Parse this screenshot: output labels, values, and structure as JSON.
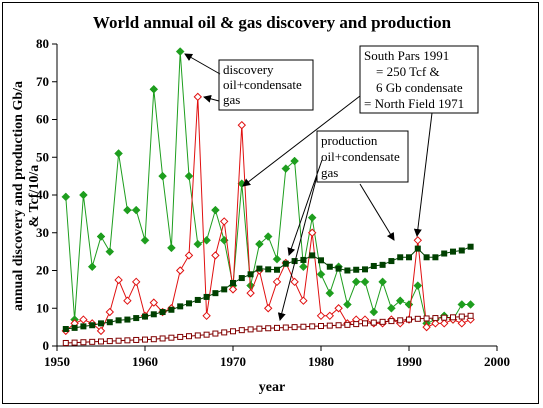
{
  "chart_data": {
    "type": "line",
    "title": "World annual oil & gas discovery and production",
    "xlabel": "year",
    "ylabel_line1": "annual discovery and production Gb/a",
    "ylabel_line2": "& Tcf/10/a",
    "xlim": [
      1950,
      2000
    ],
    "ylim": [
      0,
      80
    ],
    "xticks": [
      1950,
      1960,
      1970,
      1980,
      1990,
      2000
    ],
    "yticks": [
      0,
      10,
      20,
      30,
      40,
      50,
      60,
      70,
      80
    ],
    "series": [
      {
        "name": "discovery oil+condensate gas",
        "color": "#1e9e1e",
        "marker": "diamond-filled",
        "x": [
          1951,
          1952,
          1953,
          1954,
          1955,
          1956,
          1957,
          1958,
          1959,
          1960,
          1961,
          1962,
          1963,
          1964,
          1965,
          1966,
          1967,
          1968,
          1969,
          1970,
          1971,
          1972,
          1973,
          1974,
          1975,
          1976,
          1977,
          1978,
          1979,
          1980,
          1981,
          1982,
          1983,
          1984,
          1985,
          1986,
          1987,
          1988,
          1989,
          1990,
          1991,
          1992,
          1993,
          1994,
          1995,
          1996,
          1997
        ],
        "y": [
          39.5,
          7,
          40,
          21,
          29,
          25,
          51,
          36,
          36,
          28,
          68,
          45,
          26,
          78,
          45,
          27,
          28,
          36,
          28,
          16,
          43,
          16,
          27,
          29,
          23,
          47,
          49,
          21,
          34,
          19,
          14,
          21,
          11,
          17,
          17,
          9,
          17,
          10,
          12,
          11,
          16,
          6,
          7,
          8,
          7,
          11,
          11
        ]
      },
      {
        "name": "discovery red",
        "color": "#e01010",
        "marker": "diamond-open",
        "x": [
          1951,
          1952,
          1953,
          1954,
          1955,
          1956,
          1957,
          1958,
          1959,
          1960,
          1961,
          1962,
          1963,
          1964,
          1965,
          1966,
          1967,
          1968,
          1969,
          1970,
          1971,
          1972,
          1973,
          1974,
          1975,
          1976,
          1977,
          1978,
          1979,
          1980,
          1981,
          1982,
          1983,
          1984,
          1985,
          1986,
          1987,
          1988,
          1989,
          1990,
          1991,
          1992,
          1993,
          1994,
          1995,
          1996,
          1997
        ],
        "y": [
          4,
          6,
          7,
          6,
          4,
          9,
          17.5,
          12,
          17,
          8,
          11.5,
          9,
          10,
          20,
          24,
          66,
          8,
          24,
          33,
          15,
          58.5,
          14,
          20,
          10,
          17,
          22,
          17,
          12,
          30,
          8,
          8,
          10,
          6,
          7,
          7,
          6,
          6,
          7,
          6,
          7,
          28,
          5,
          6,
          6,
          7,
          6,
          7
        ]
      },
      {
        "name": "production oil+condensate",
        "color": "#004000",
        "marker": "square-filled",
        "x": [
          1951,
          1952,
          1953,
          1954,
          1955,
          1956,
          1957,
          1958,
          1959,
          1960,
          1961,
          1962,
          1963,
          1964,
          1965,
          1966,
          1967,
          1968,
          1969,
          1970,
          1971,
          1972,
          1973,
          1974,
          1975,
          1976,
          1977,
          1978,
          1979,
          1980,
          1981,
          1982,
          1983,
          1984,
          1985,
          1986,
          1987,
          1988,
          1989,
          1990,
          1991,
          1992,
          1993,
          1994,
          1995,
          1996,
          1997
        ],
        "y": [
          4.5,
          4.8,
          5.2,
          5.5,
          6,
          6.3,
          6.8,
          7,
          7.4,
          7.8,
          8.4,
          9,
          9.6,
          10.5,
          11.3,
          12.2,
          13,
          14,
          15,
          16.7,
          18,
          19,
          20.5,
          20.3,
          20.2,
          21.8,
          22.5,
          22.8,
          24,
          22.7,
          21,
          20.5,
          20,
          20.2,
          20.3,
          21.2,
          21.5,
          22.5,
          23.5,
          23.5,
          25.8,
          23.5,
          23.5,
          24.5,
          25,
          25.3,
          26.3
        ]
      },
      {
        "name": "production gas",
        "color": "#800000",
        "marker": "square-open",
        "x": [
          1951,
          1952,
          1953,
          1954,
          1955,
          1956,
          1957,
          1958,
          1959,
          1960,
          1961,
          1962,
          1963,
          1964,
          1965,
          1966,
          1967,
          1968,
          1969,
          1970,
          1971,
          1972,
          1973,
          1974,
          1975,
          1976,
          1977,
          1978,
          1979,
          1980,
          1981,
          1982,
          1983,
          1984,
          1985,
          1986,
          1987,
          1988,
          1989,
          1990,
          1991,
          1992,
          1993,
          1994,
          1995,
          1996,
          1997
        ],
        "y": [
          0.8,
          0.9,
          1,
          1.1,
          1.2,
          1.3,
          1.4,
          1.5,
          1.6,
          1.7,
          1.8,
          2,
          2.2,
          2.4,
          2.6,
          2.8,
          3,
          3.3,
          3.6,
          3.9,
          4.2,
          4.4,
          4.6,
          4.7,
          4.8,
          4.9,
          5,
          5.1,
          5.2,
          5.3,
          5.4,
          5.5,
          5.6,
          5.8,
          6,
          6.2,
          6.4,
          6.6,
          6.8,
          7,
          7.2,
          7.3,
          7.4,
          7.5,
          7.6,
          7.8,
          8
        ]
      }
    ],
    "annotations": [
      {
        "id": "discovery",
        "lines": [
          "discovery",
          "oil+condensate",
          "gas"
        ]
      },
      {
        "id": "south-pars",
        "lines": [
          "South Pars 1991",
          "= 250 Tcf &",
          "6 Gb condensate",
          "= North Field 1971"
        ]
      },
      {
        "id": "production",
        "lines": [
          "production",
          "oil+condensate",
          "gas"
        ]
      }
    ]
  }
}
